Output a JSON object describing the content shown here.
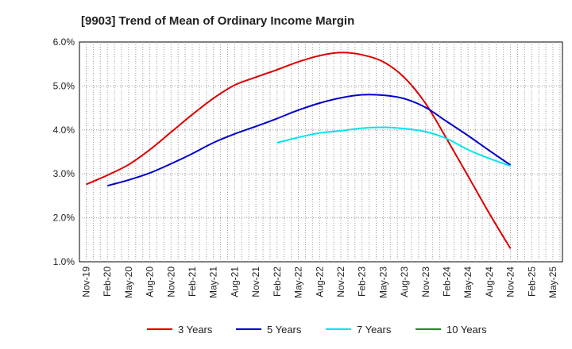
{
  "chart_data": {
    "type": "line",
    "title": "[9903]  Trend of Mean of Ordinary Income Margin",
    "xlabel": "",
    "ylabel": "",
    "x": [
      "Nov-19",
      "Feb-20",
      "May-20",
      "Aug-20",
      "Nov-20",
      "Feb-21",
      "May-21",
      "Aug-21",
      "Nov-21",
      "Feb-22",
      "May-22",
      "Aug-22",
      "Nov-22",
      "Feb-23",
      "May-23",
      "Aug-23",
      "Nov-23",
      "Feb-24",
      "May-24",
      "Aug-24",
      "Nov-24",
      "Feb-25",
      "May-25"
    ],
    "ylim": [
      1.0,
      6.0
    ],
    "yticks": [
      "1.0%",
      "2.0%",
      "3.0%",
      "4.0%",
      "5.0%",
      "6.0%"
    ],
    "grid": true,
    "legend_position": "bottom",
    "series": [
      {
        "name": "3 Years",
        "color": "#dd0000",
        "values": [
          2.76,
          2.97,
          3.21,
          3.55,
          3.95,
          4.35,
          4.72,
          5.02,
          5.2,
          5.37,
          5.55,
          5.69,
          5.76,
          5.71,
          5.55,
          5.19,
          4.6,
          3.79,
          2.95,
          2.1,
          1.3,
          null,
          null
        ]
      },
      {
        "name": "5 Years",
        "color": "#0000cc",
        "values": [
          null,
          2.73,
          2.86,
          3.02,
          3.23,
          3.46,
          3.71,
          3.91,
          4.08,
          4.26,
          4.45,
          4.61,
          4.73,
          4.8,
          4.79,
          4.71,
          4.51,
          4.19,
          3.87,
          3.53,
          3.2,
          null,
          null
        ]
      },
      {
        "name": "7 Years",
        "color": "#00e5ee",
        "values": [
          null,
          null,
          null,
          null,
          null,
          null,
          null,
          null,
          null,
          3.71,
          3.83,
          3.93,
          3.98,
          4.04,
          4.06,
          4.03,
          3.96,
          3.8,
          3.55,
          3.35,
          3.18,
          null,
          null
        ]
      },
      {
        "name": "10 Years",
        "color": "#228b22",
        "values": [
          null,
          null,
          null,
          null,
          null,
          null,
          null,
          null,
          null,
          null,
          null,
          null,
          null,
          null,
          null,
          null,
          null,
          null,
          null,
          null,
          null,
          null,
          null
        ]
      }
    ]
  }
}
